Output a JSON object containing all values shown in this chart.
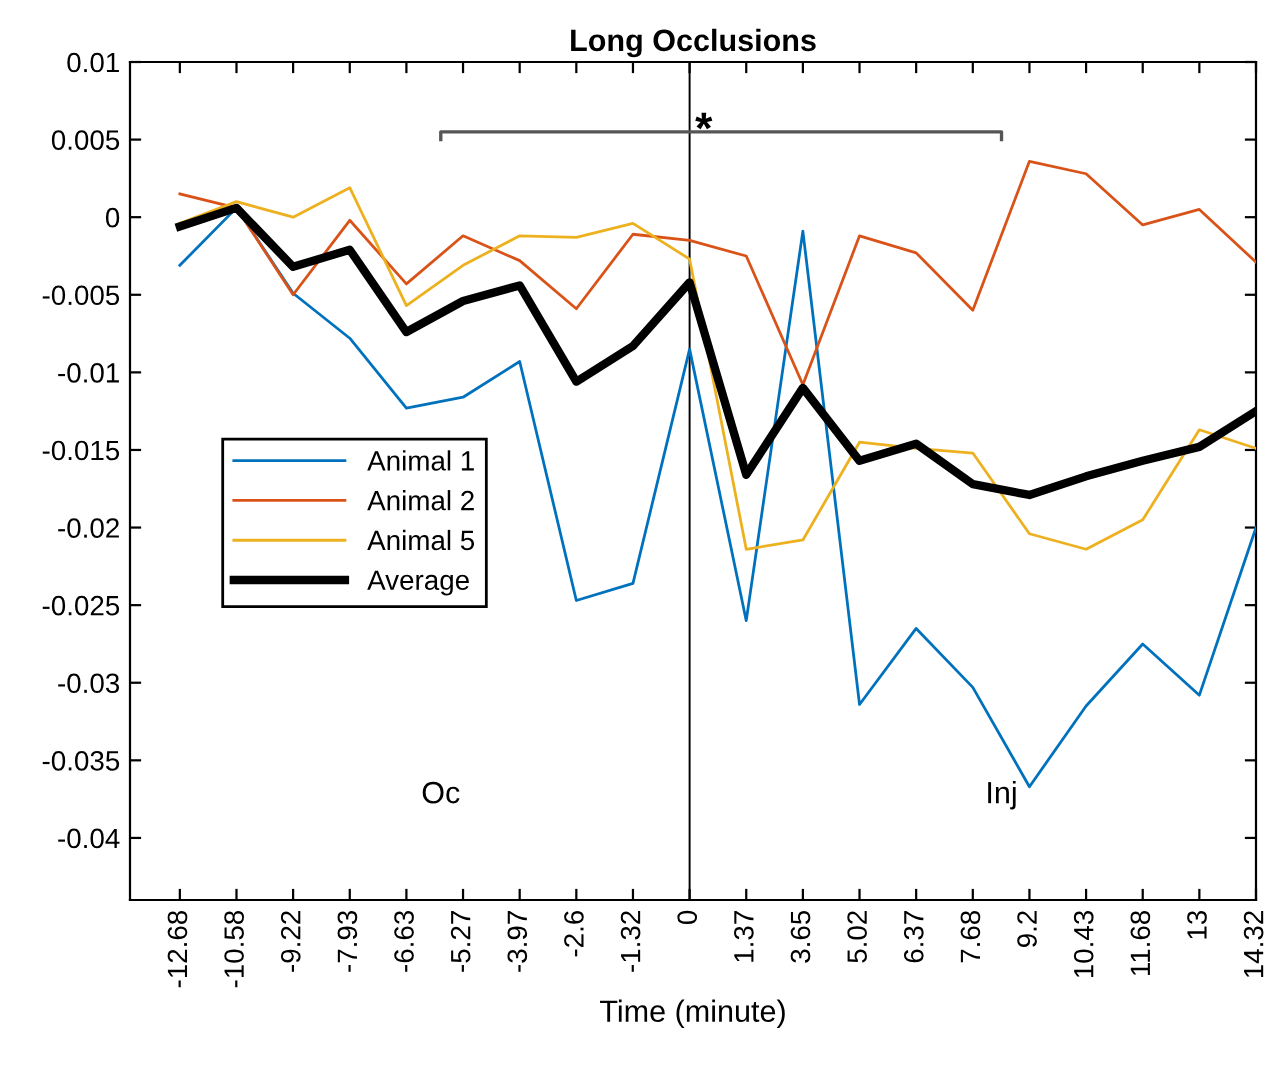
{
  "chart_data": {
    "type": "line",
    "title": "Long Occlusions",
    "xlabel": "Time (minute)",
    "categories": [
      "-12.68",
      "-10.58",
      "-9.22",
      "-7.93",
      "-6.63",
      "-5.27",
      "-3.97",
      "-2.6",
      "-1.32",
      "0",
      "1.37",
      "3.65",
      "5.02",
      "6.37",
      "7.68",
      "9.2",
      "10.43",
      "11.68",
      "13",
      "14.32"
    ],
    "series": [
      {
        "name": "Animal 1",
        "color": "#0072bd",
        "values": [
          -0.0031,
          0.0006,
          -0.0049,
          -0.0078,
          -0.0123,
          -0.0116,
          -0.0093,
          -0.0247,
          -0.0236,
          -0.0085,
          -0.026,
          -0.0009,
          -0.0314,
          -0.0265,
          -0.0303,
          -0.0367,
          -0.0315,
          -0.0275,
          -0.0308,
          -0.02
        ]
      },
      {
        "name": "Animal 2",
        "color": "#d95319",
        "values": [
          0.0015,
          0.0006,
          -0.005,
          -0.0002,
          -0.0043,
          -0.0012,
          -0.0028,
          -0.0059,
          -0.0011,
          -0.0015,
          -0.0025,
          -0.0108,
          -0.0012,
          -0.0023,
          -0.006,
          0.0036,
          0.0028,
          -0.0005,
          0.0005,
          -0.0029
        ]
      },
      {
        "name": "Animal 5",
        "color": "#edb120",
        "values": [
          -0.0004,
          0.001,
          0,
          0.0019,
          -0.0057,
          -0.0031,
          -0.0012,
          -0.0013,
          -0.0004,
          -0.0027,
          -0.0214,
          -0.0208,
          -0.0145,
          -0.0149,
          -0.0152,
          -0.0204,
          -0.0214,
          -0.0195,
          -0.0137,
          -0.0149
        ]
      },
      {
        "name": "Average",
        "color": "#000000",
        "values": [
          -0.0006,
          0.0006,
          -0.0032,
          -0.0021,
          -0.0074,
          -0.0054,
          -0.0044,
          -0.0106,
          -0.0083,
          -0.0042,
          -0.0166,
          -0.011,
          -0.0157,
          -0.0146,
          -0.0172,
          -0.0179,
          -0.0167,
          -0.0157,
          -0.0148,
          -0.0125
        ]
      }
    ],
    "ylim": [
      -0.044,
      0.01
    ],
    "yticks": [
      0.01,
      0.005,
      0,
      -0.005,
      -0.01,
      -0.015,
      -0.02,
      -0.025,
      -0.03,
      -0.035,
      -0.04
    ],
    "ref_lines": [
      {
        "axis": "x",
        "value": "0",
        "color": "#000000"
      }
    ],
    "annotations": [
      "Oc",
      "Inj",
      {
        "text": "*",
        "x": "0",
        "y": 0.0055
      }
    ],
    "grid": false,
    "legend": "left",
    "marker": "none",
    "line_style": "solid"
  }
}
